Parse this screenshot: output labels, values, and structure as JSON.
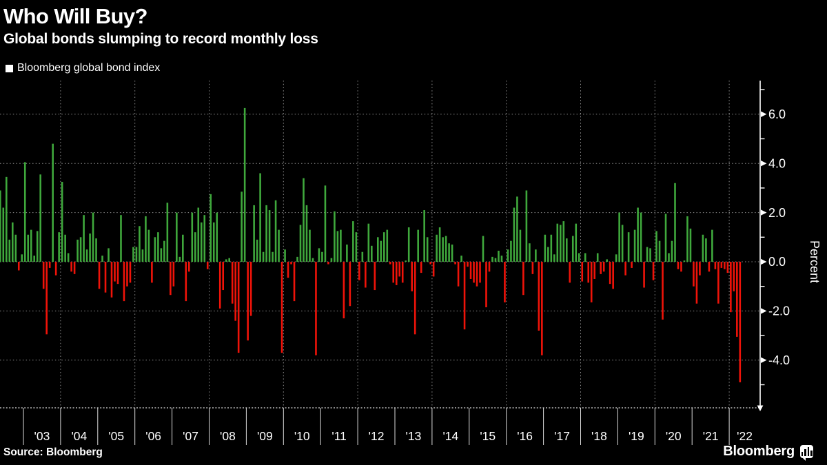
{
  "header": {
    "title": "Who Will Buy?",
    "subtitle": "Global bonds slumping to record monthly loss"
  },
  "legend": {
    "series_label": "Bloomberg global bond index"
  },
  "axis": {
    "y_title": "Percent",
    "y_tick_labels": [
      "6.0",
      "4.0",
      "2.0",
      "0.0",
      "-2.0",
      "-4.0"
    ],
    "y_major_values": [
      6,
      4,
      2,
      0,
      -2,
      -4
    ],
    "y_minor_values": [
      7,
      5,
      3,
      1,
      -1,
      -3,
      -5
    ]
  },
  "footer": {
    "source": "Source: Bloomberg",
    "brand": "Bloomberg"
  },
  "colors": {
    "background": "#000000",
    "positive_bar": "#3fa83c",
    "negative_bar": "#ef1309",
    "axis": "#ffffff",
    "gridline": "#8f8f8f",
    "baseline": "#dddddd",
    "text": "#ffffff"
  },
  "chart_data": {
    "type": "bar",
    "title": "Who Will Buy?",
    "subtitle": "Global bonds slumping to record monthly loss",
    "series_name": "Bloomberg global bond index",
    "unit": "percent, monthly return",
    "x_start": "2002-05",
    "x_end": "2022-04",
    "ylim": [
      -6.0,
      7.35
    ],
    "grid": true,
    "legend_position": "top-left",
    "y_gridlines": [
      6,
      4,
      2,
      0,
      -2,
      -4
    ],
    "year_labels": [
      "'03",
      "'04",
      "'05",
      "'06",
      "'07",
      "'08",
      "'09",
      "'10",
      "'11",
      "'12",
      "'13",
      "'14",
      "'15",
      "'16",
      "'17",
      "'18",
      "'19",
      "'20",
      "'21",
      "'22"
    ],
    "monthly_values": [
      2.9,
      2.2,
      3.45,
      0.9,
      1.6,
      1.1,
      -0.35,
      0.3,
      4.05,
      1.1,
      1.3,
      0.25,
      1.25,
      3.55,
      -1.1,
      -2.95,
      -0.25,
      4.8,
      -0.55,
      1.2,
      3.25,
      1.1,
      0.35,
      -0.4,
      -0.5,
      0.9,
      1.0,
      1.9,
      0.5,
      1.15,
      2.0,
      0.95,
      -1.1,
      0.25,
      -1.25,
      0.55,
      -1.45,
      -0.8,
      -0.9,
      1.9,
      -1.6,
      -1.0,
      -0.85,
      0.6,
      0.6,
      1.45,
      0.5,
      1.85,
      1.3,
      -0.85,
      1.0,
      1.2,
      0.55,
      0.85,
      2.4,
      -1.35,
      -1.0,
      2.0,
      0.2,
      1.1,
      -1.6,
      -0.4,
      2.0,
      1.2,
      2.2,
      1.6,
      1.9,
      -0.3,
      2.75,
      1.6,
      2.0,
      -1.9,
      -1.15,
      0.1,
      0.15,
      -1.7,
      -2.4,
      -3.7,
      2.85,
      6.25,
      -3.2,
      -2.2,
      2.3,
      0.9,
      3.6,
      0.4,
      2.3,
      2.1,
      0.4,
      2.5,
      1.3,
      -3.7,
      0.5,
      -0.65,
      -0.1,
      -1.6,
      0.2,
      1.5,
      3.4,
      2.3,
      1.3,
      0.15,
      -3.8,
      0.55,
      0.4,
      3.1,
      -0.1,
      0.15,
      2.05,
      1.25,
      1.3,
      -2.3,
      0.7,
      -1.8,
      1.65,
      1.2,
      -0.75,
      0.4,
      -1.05,
      1.55,
      0.65,
      -1.15,
      1.0,
      0.85,
      1.2,
      1.3,
      -0.1,
      -0.85,
      -0.95,
      -0.6,
      -0.85,
      0.05,
      1.4,
      -1.2,
      -2.95,
      1.3,
      -0.45,
      2.1,
      1.0,
      -0.1,
      -0.6,
      1.1,
      1.4,
      1.0,
      1.05,
      0.75,
      0.7,
      -0.1,
      -1.0,
      0.25,
      -2.75,
      -0.2,
      -0.7,
      -0.85,
      -1.0,
      -0.85,
      1.05,
      -1.85,
      -0.4,
      0.2,
      0.15,
      0.45,
      0.25,
      -1.65,
      0.5,
      0.85,
      2.2,
      2.65,
      1.3,
      -1.35,
      2.9,
      0.75,
      -0.5,
      0.5,
      -2.8,
      -3.8,
      1.1,
      0.6,
      1.1,
      0.3,
      1.55,
      1.5,
      1.65,
      0.95,
      -0.85,
      1.05,
      1.55,
      0.35,
      -0.8,
      0.35,
      -0.85,
      -1.65,
      -0.7,
      0.35,
      -0.5,
      -0.4,
      0.1,
      -0.9,
      -1.1,
      0.3,
      2.0,
      1.5,
      -0.55,
      1.2,
      -0.25,
      1.3,
      2.2,
      2.0,
      -1.05,
      0.6,
      0.55,
      -0.75,
      1.25,
      0.85,
      -2.35,
      1.95,
      0.35,
      0.85,
      3.2,
      -0.3,
      -0.4,
      0.05,
      1.85,
      1.35,
      -1.0,
      -1.7,
      -0.55,
      1.1,
      0.95,
      -0.4,
      1.3,
      -0.3,
      -1.7,
      -0.25,
      -0.3,
      -0.45,
      -2.05,
      -1.2,
      -3.05,
      -4.9
    ]
  }
}
